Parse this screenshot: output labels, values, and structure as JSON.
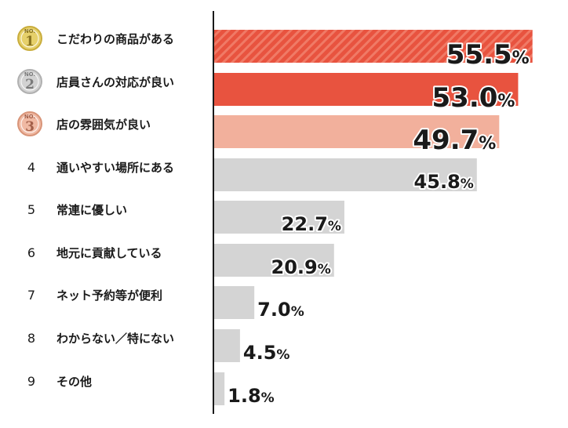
{
  "chart_data": {
    "type": "bar",
    "orientation": "horizontal",
    "categories": [
      "こだわりの商品がある",
      "店員さんの対応が良い",
      "店の雰囲気が良い",
      "通いやすい場所にある",
      "常連に優しい",
      "地元に貢献している",
      "ネット予約等が便利",
      "わからない／特にない",
      "その他"
    ],
    "ranks": [
      "1",
      "2",
      "3",
      "4",
      "5",
      "6",
      "7",
      "8",
      "9"
    ],
    "medal_label": "NO.",
    "values": [
      55.5,
      53.0,
      49.7,
      45.8,
      22.7,
      20.9,
      7.0,
      4.5,
      1.8
    ],
    "value_labels": [
      "55.5",
      "53.0",
      "49.7",
      "45.8",
      "22.7",
      "20.9",
      "7.0",
      "4.5",
      "1.8"
    ],
    "unit": "%",
    "xlim": [
      0,
      58
    ],
    "colors": {
      "rank1": "#e8533f",
      "rank1_stripe": "#f07a66",
      "rank2": "#e8533f",
      "rank3": "#f2b09c",
      "other": "#d4d4d4",
      "medal_gold": "#e6d06a",
      "medal_silver": "#d2d2d2",
      "medal_bronze": "#f0b9a3"
    }
  }
}
